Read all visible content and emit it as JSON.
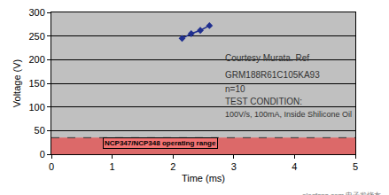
{
  "chart_data": {
    "type": "line",
    "x_label": "Time (ms)",
    "y_label": "Voltage (V)",
    "x": [
      2.15,
      2.3,
      2.45,
      2.6
    ],
    "values": [
      245,
      255,
      262,
      272
    ],
    "color": "#1f2f8f",
    "marker": "diamond",
    "line_style": "solid",
    "xlim": [
      0,
      5
    ],
    "ylim": [
      0,
      300
    ],
    "xticks": [
      0,
      1,
      2,
      3,
      4,
      5
    ],
    "yticks": [
      0,
      50,
      100,
      150,
      200,
      250,
      300
    ],
    "grid": true,
    "annotations": [
      "Courtesy Murata. Ref",
      "GRM188R61C105KA93",
      "n=10",
      "TEST CONDITION:",
      "100V/s, 100mA, Inside Shilicone Oil"
    ],
    "band": {
      "y0": 0,
      "y1": 35,
      "label": "NCP347/NCP348 operating range",
      "color": "#ff0000"
    },
    "watermark": "elecfans.com 电子发烧友"
  }
}
